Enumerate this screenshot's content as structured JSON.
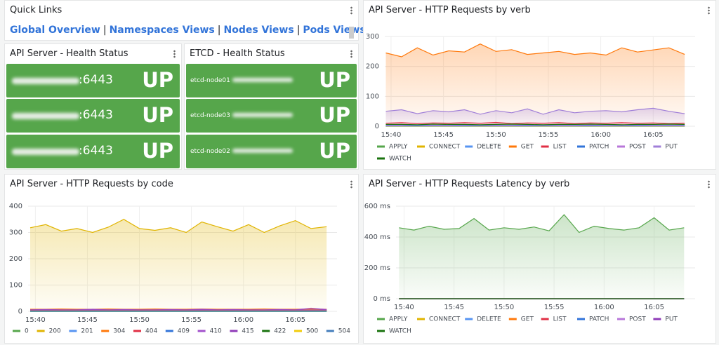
{
  "quick_links": {
    "title": "Quick Links",
    "links": [
      "Global Overview",
      "Namespaces Views",
      "Nodes Views",
      "Pods Views"
    ],
    "separator": "|"
  },
  "api_health": {
    "title": "API Server - Health Status",
    "rows": [
      {
        "port": ":6443",
        "status": "UP"
      },
      {
        "port": ":6443",
        "status": "UP"
      },
      {
        "port": ":6443",
        "status": "UP"
      }
    ]
  },
  "etcd_health": {
    "title": "ETCD - Health Status",
    "rows": [
      {
        "name": "etcd-node01",
        "status": "UP"
      },
      {
        "name": "etcd-node03",
        "status": "UP"
      },
      {
        "name": "etcd-node02",
        "status": "UP"
      }
    ]
  },
  "chart_data": [
    {
      "type": "line",
      "area": true,
      "grid": true,
      "title": "API Server - HTTP Requests by verb",
      "x": [
        939.5,
        941,
        942.5,
        944,
        945.5,
        947,
        948.5,
        950,
        951.5,
        953,
        954.5,
        956,
        957.5,
        959,
        960.5,
        962,
        963.5,
        965,
        966.5,
        968
      ],
      "xlim": [
        939.4,
        969
      ],
      "xticks": [
        {
          "value": 940,
          "label": "15:40"
        },
        {
          "value": 945,
          "label": "15:45"
        },
        {
          "value": 950,
          "label": "15:50"
        },
        {
          "value": 955,
          "label": "15:55"
        },
        {
          "value": 960,
          "label": "16:00"
        },
        {
          "value": 965,
          "label": "16:05"
        }
      ],
      "ylim": [
        0,
        300
      ],
      "yticks": [
        0,
        100,
        200,
        300
      ],
      "series": [
        {
          "name": "APPLY",
          "color": "#56a64b",
          "values": [
            0,
            0,
            0,
            0,
            0,
            0,
            0,
            0,
            0,
            0,
            0,
            0,
            0,
            0,
            0,
            0,
            0,
            0,
            0,
            0
          ]
        },
        {
          "name": "CONNECT",
          "color": "#e0b400",
          "values": [
            0,
            0,
            0,
            0,
            0,
            0,
            0,
            0,
            0,
            0,
            0,
            0,
            0,
            0,
            0,
            0,
            0,
            0,
            0,
            0
          ]
        },
        {
          "name": "DELETE",
          "color": "#5794f2",
          "values": [
            1,
            1,
            1,
            1,
            1,
            1,
            1,
            1,
            1,
            1,
            1,
            1,
            1,
            1,
            1,
            1,
            1,
            1,
            1,
            1
          ]
        },
        {
          "name": "GET",
          "color": "#ff780a",
          "values": [
            245,
            232,
            262,
            238,
            252,
            248,
            275,
            250,
            256,
            240,
            245,
            250,
            240,
            245,
            238,
            262,
            248,
            255,
            262,
            240
          ]
        },
        {
          "name": "LIST",
          "color": "#e02f44",
          "values": [
            10,
            12,
            9,
            11,
            10,
            12,
            10,
            13,
            9,
            11,
            10,
            12,
            9,
            11,
            10,
            12,
            10,
            11,
            9,
            10
          ]
        },
        {
          "name": "PATCH",
          "color": "#3274d9",
          "values": [
            2,
            2,
            2,
            2,
            2,
            2,
            2,
            2,
            2,
            2,
            2,
            2,
            2,
            2,
            2,
            2,
            2,
            2,
            2,
            2
          ]
        },
        {
          "name": "POST",
          "color": "#b877d9",
          "values": [
            3,
            3,
            4,
            3,
            3,
            4,
            3,
            3,
            3,
            4,
            3,
            3,
            3,
            4,
            3,
            3,
            4,
            3,
            3,
            3
          ]
        },
        {
          "name": "PUT",
          "color": "#a07fd8",
          "values": [
            50,
            55,
            42,
            52,
            48,
            55,
            40,
            52,
            45,
            58,
            40,
            55,
            45,
            50,
            52,
            48,
            55,
            60,
            50,
            42
          ]
        },
        {
          "name": "WATCH",
          "color": "#19730e",
          "values": [
            6,
            6,
            5,
            7,
            6,
            6,
            5,
            6,
            7,
            6,
            5,
            6,
            6,
            7,
            6,
            5,
            6,
            6,
            7,
            6
          ]
        }
      ]
    },
    {
      "type": "line",
      "area": true,
      "grid": true,
      "title": "API Server - HTTP Requests by code",
      "x": [
        939.5,
        941,
        942.5,
        944,
        945.5,
        947,
        948.5,
        950,
        951.5,
        953,
        954.5,
        956,
        957.5,
        959,
        960.5,
        962,
        963.5,
        965,
        966.5,
        968
      ],
      "xlim": [
        939.3,
        969
      ],
      "xticks": [
        {
          "value": 940,
          "label": "15:40"
        },
        {
          "value": 945,
          "label": "15:45"
        },
        {
          "value": 950,
          "label": "15:50"
        },
        {
          "value": 955,
          "label": "15:55"
        },
        {
          "value": 960,
          "label": "16:00"
        },
        {
          "value": 965,
          "label": "16:05"
        }
      ],
      "ylim": [
        0,
        400
      ],
      "yticks": [
        0,
        100,
        200,
        300,
        400
      ],
      "series": [
        {
          "name": "0",
          "color": "#56a64b",
          "values": [
            4,
            4,
            5,
            4,
            4,
            5,
            4,
            4,
            4,
            5,
            4,
            4,
            5,
            4,
            4,
            4,
            5,
            4,
            4,
            4
          ]
        },
        {
          "name": "200",
          "color": "#e0b400",
          "values": [
            318,
            330,
            305,
            315,
            300,
            320,
            350,
            315,
            308,
            318,
            300,
            340,
            322,
            305,
            330,
            300,
            325,
            345,
            315,
            322
          ]
        },
        {
          "name": "201",
          "color": "#5794f2",
          "values": [
            0,
            0,
            0,
            0,
            0,
            0,
            0,
            0,
            0,
            0,
            0,
            0,
            0,
            0,
            0,
            0,
            0,
            0,
            0,
            0
          ]
        },
        {
          "name": "304",
          "color": "#ff780a",
          "values": [
            8,
            8,
            9,
            8,
            8,
            9,
            8,
            8,
            9,
            8,
            8,
            9,
            8,
            8,
            8,
            9,
            8,
            8,
            9,
            8
          ]
        },
        {
          "name": "404",
          "color": "#e02f44",
          "values": [
            3,
            3,
            3,
            3,
            3,
            3,
            3,
            3,
            3,
            3,
            3,
            3,
            3,
            3,
            3,
            3,
            3,
            3,
            3,
            3
          ]
        },
        {
          "name": "409",
          "color": "#3274d9",
          "values": [
            1,
            1,
            1,
            1,
            1,
            1,
            1,
            1,
            1,
            1,
            1,
            1,
            1,
            1,
            1,
            1,
            1,
            1,
            1,
            1
          ]
        },
        {
          "name": "410",
          "color": "#a352cc",
          "values": [
            6,
            7,
            6,
            6,
            8,
            6,
            7,
            6,
            6,
            7,
            6,
            8,
            6,
            7,
            6,
            6,
            7,
            6,
            12,
            7
          ]
        },
        {
          "name": "415",
          "color": "#8f3bb8",
          "values": [
            5,
            5,
            5,
            5,
            5,
            5,
            5,
            5,
            5,
            5,
            5,
            5,
            5,
            5,
            5,
            5,
            5,
            5,
            5,
            5
          ]
        },
        {
          "name": "422",
          "color": "#19730e",
          "values": [
            0,
            0,
            0,
            0,
            0,
            0,
            0,
            0,
            0,
            0,
            0,
            0,
            0,
            0,
            0,
            0,
            0,
            0,
            0,
            0
          ]
        },
        {
          "name": "500",
          "color": "#f2cc0c",
          "values": [
            2,
            2,
            2,
            2,
            2,
            2,
            2,
            2,
            2,
            2,
            2,
            2,
            2,
            2,
            2,
            2,
            2,
            2,
            2,
            2
          ]
        },
        {
          "name": "504",
          "color": "#447ebc",
          "values": [
            1,
            1,
            1,
            1,
            1,
            1,
            1,
            1,
            1,
            1,
            1,
            1,
            1,
            1,
            1,
            1,
            1,
            1,
            1,
            1
          ]
        }
      ]
    },
    {
      "type": "line",
      "area": true,
      "grid": true,
      "title": "API Server - HTTP Requests Latency by verb",
      "x": [
        939.5,
        941,
        942.5,
        944,
        945.5,
        947,
        948.5,
        950,
        951.5,
        953,
        954.5,
        956,
        957.5,
        959,
        960.5,
        962,
        963.5,
        965,
        966.5,
        968
      ],
      "xlim": [
        939.2,
        969.1
      ],
      "xticks": [
        {
          "value": 940,
          "label": "15:40"
        },
        {
          "value": 945,
          "label": "15:45"
        },
        {
          "value": 950,
          "label": "15:50"
        },
        {
          "value": 955,
          "label": "15:55"
        },
        {
          "value": 960,
          "label": "16:00"
        },
        {
          "value": 965,
          "label": "16:05"
        }
      ],
      "ylim": [
        0,
        600
      ],
      "yticks": [
        {
          "value": 0,
          "label": "0 ms"
        },
        {
          "value": 200,
          "label": "200 ms"
        },
        {
          "value": 400,
          "label": "400 ms"
        },
        {
          "value": 600,
          "label": "600 ms"
        }
      ],
      "series": [
        {
          "name": "APPLY",
          "color": "#56a64b",
          "values": [
            460,
            445,
            470,
            450,
            455,
            520,
            445,
            460,
            450,
            465,
            440,
            545,
            430,
            470,
            455,
            445,
            460,
            525,
            445,
            460
          ]
        },
        {
          "name": "CONNECT",
          "color": "#e0b400",
          "values": [
            0,
            0,
            0,
            0,
            0,
            0,
            0,
            0,
            0,
            0,
            0,
            0,
            0,
            0,
            0,
            0,
            0,
            0,
            0,
            0
          ]
        },
        {
          "name": "DELETE",
          "color": "#5794f2",
          "values": [
            0,
            0,
            0,
            0,
            0,
            0,
            0,
            0,
            0,
            0,
            0,
            0,
            0,
            0,
            0,
            0,
            0,
            0,
            0,
            0
          ]
        },
        {
          "name": "GET",
          "color": "#ff780a",
          "values": [
            0,
            0,
            0,
            0,
            0,
            0,
            0,
            0,
            0,
            0,
            0,
            0,
            0,
            0,
            0,
            0,
            0,
            0,
            0,
            0
          ]
        },
        {
          "name": "LIST",
          "color": "#e02f44",
          "values": [
            0,
            0,
            0,
            0,
            0,
            0,
            0,
            0,
            0,
            0,
            0,
            0,
            0,
            0,
            0,
            0,
            0,
            0,
            0,
            0
          ]
        },
        {
          "name": "PATCH",
          "color": "#3274d9",
          "values": [
            0,
            0,
            0,
            0,
            0,
            0,
            0,
            0,
            0,
            0,
            0,
            0,
            0,
            0,
            0,
            0,
            0,
            0,
            0,
            0
          ]
        },
        {
          "name": "POST",
          "color": "#b877d9",
          "values": [
            0,
            0,
            0,
            0,
            0,
            0,
            0,
            0,
            0,
            0,
            0,
            0,
            0,
            0,
            0,
            0,
            0,
            0,
            0,
            0
          ]
        },
        {
          "name": "PUT",
          "color": "#8f3bb8",
          "values": [
            0,
            0,
            0,
            0,
            0,
            0,
            0,
            0,
            0,
            0,
            0,
            0,
            0,
            0,
            0,
            0,
            0,
            0,
            0,
            0
          ]
        },
        {
          "name": "WATCH",
          "color": "#19730e",
          "values": [
            0,
            0,
            0,
            0,
            0,
            0,
            0,
            0,
            0,
            0,
            0,
            0,
            0,
            0,
            0,
            0,
            0,
            0,
            0,
            0
          ]
        }
      ]
    }
  ]
}
